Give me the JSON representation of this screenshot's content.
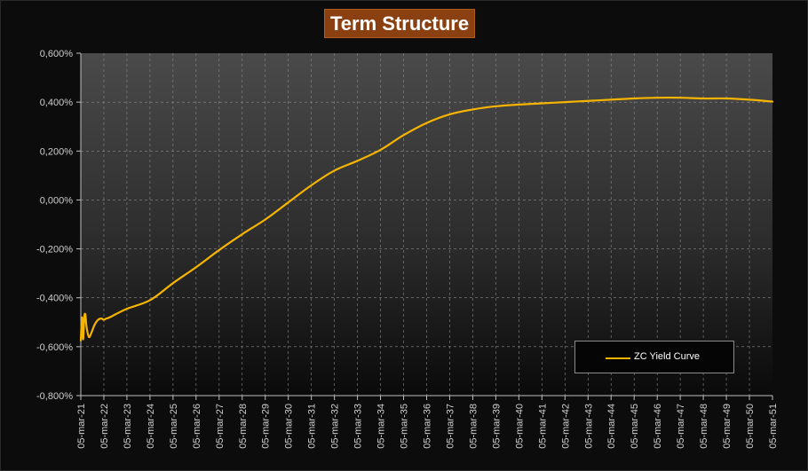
{
  "chart_data": {
    "type": "line",
    "title": "Term Structure",
    "xlabel": "",
    "ylabel": "",
    "y_ticks": [
      "-0,800%",
      "-0,600%",
      "-0,400%",
      "-0,200%",
      "0,000%",
      "0,200%",
      "0,400%",
      "0,600%"
    ],
    "ylim": [
      -0.8,
      0.6
    ],
    "x_ticks": [
      "05-mar-21",
      "05-mar-22",
      "05-mar-23",
      "05-mar-24",
      "05-mar-25",
      "05-mar-26",
      "05-mar-27",
      "05-mar-28",
      "05-mar-29",
      "05-mar-30",
      "05-mar-31",
      "05-mar-32",
      "05-mar-33",
      "05-mar-34",
      "05-mar-35",
      "05-mar-36",
      "05-mar-37",
      "05-mar-38",
      "05-mar-39",
      "05-mar-40",
      "05-mar-41",
      "05-mar-42",
      "05-mar-43",
      "05-mar-44",
      "05-mar-45",
      "05-mar-46",
      "05-mar-47",
      "05-mar-48",
      "05-mar-49",
      "05-mar-50",
      "05-mar-51"
    ],
    "xlim": [
      2021,
      2051
    ],
    "grid": true,
    "legend_position": "bottom-right",
    "series": [
      {
        "name": "ZC Yield Curve",
        "color": "#f5b400",
        "x": [
          2021.0,
          2021.05,
          2021.1,
          2021.15,
          2021.2,
          2021.25,
          2021.35,
          2021.45,
          2021.6,
          2021.75,
          2021.9,
          2022.0,
          2022.1,
          2022.25,
          2023,
          2024,
          2025,
          2026,
          2027,
          2028,
          2029,
          2030,
          2031,
          2032,
          2033,
          2034,
          2035,
          2036,
          2037,
          2038,
          2039,
          2040,
          2041,
          2042,
          2043,
          2044,
          2045,
          2046,
          2047,
          2048,
          2049,
          2050,
          2051
        ],
        "y": [
          -0.575,
          -0.48,
          -0.57,
          -0.48,
          -0.47,
          -0.52,
          -0.56,
          -0.545,
          -0.51,
          -0.49,
          -0.485,
          -0.49,
          -0.485,
          -0.48,
          -0.445,
          -0.41,
          -0.34,
          -0.275,
          -0.205,
          -0.14,
          -0.08,
          -0.01,
          0.06,
          0.12,
          0.16,
          0.205,
          0.265,
          0.315,
          0.35,
          0.37,
          0.383,
          0.39,
          0.395,
          0.4,
          0.405,
          0.41,
          0.415,
          0.418,
          0.418,
          0.415,
          0.415,
          0.41,
          0.402
        ]
      }
    ]
  }
}
